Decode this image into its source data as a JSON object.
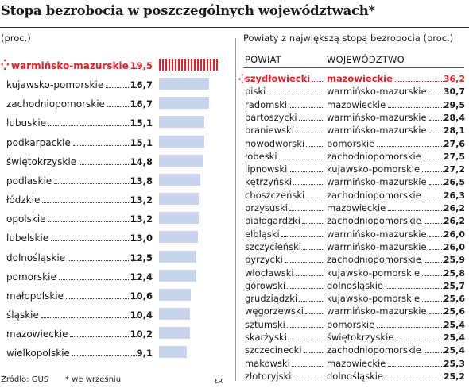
{
  "title": "Stopa bezrobocia w poszczególnych województwach*",
  "left_subtitle": "(proc.)",
  "right_subtitle": "Powiaty z największą stopą bezrobocia (proc.)",
  "right_columns": [
    "POWIAT",
    "WOJEWÓDZTWO"
  ],
  "colors": {
    "highlight": "#e8202a",
    "bar": "#c7d4ec"
  },
  "footer": {
    "source": "Źródło: GUS",
    "note": "* we wrześniu",
    "credit": "ŁR"
  },
  "chart_data": [
    {
      "type": "bar",
      "orientation": "horizontal",
      "categories": [
        "warmińsko-mazurskie",
        "kujawsko-pomorskie",
        "zachodniopomorskie",
        "lubuskie",
        "podkarpackie",
        "świętokrzyskie",
        "podlaskie",
        "łódzkie",
        "opolskie",
        "lubelskie",
        "dolnośląskie",
        "pomorskie",
        "małopolskie",
        "śląskie",
        "mazowieckie",
        "wielkopolskie"
      ],
      "values": [
        19.5,
        16.7,
        16.7,
        15.1,
        15.1,
        14.8,
        13.8,
        13.2,
        13.2,
        13.0,
        12.5,
        12.4,
        10.6,
        10.4,
        10.2,
        9.1
      ],
      "value_labels": [
        "19,5",
        "16,7",
        "16,7",
        "15,1",
        "15,1",
        "14,8",
        "13,8",
        "13,2",
        "13,2",
        "13,0",
        "12,5",
        "12,4",
        "10,6",
        "10,4",
        "10,2",
        "9,1"
      ],
      "highlight_index": 0
    },
    {
      "type": "table",
      "columns": [
        "POWIAT",
        "WOJEWÓDZTWO"
      ],
      "rows": [
        [
          "szydłowiecki",
          "mazowieckie",
          "36,2"
        ],
        [
          "piski",
          "warmińsko-mazurskie",
          "30,7"
        ],
        [
          "radomski",
          "mazowieckie",
          "29,5"
        ],
        [
          "bartoszycki",
          "warmińsko-mazurskie",
          "28,4"
        ],
        [
          "braniewski",
          "warmińsko-mazurskie",
          "28,1"
        ],
        [
          "nowodworski",
          "pomorskie",
          "27,6"
        ],
        [
          "łobeski",
          "zachodniopomorskie",
          "27,5"
        ],
        [
          "lipnowski",
          "kujawsko-pomorskie",
          "27,2"
        ],
        [
          "kętrzyński",
          "warmińsko-mazurskie",
          "26,5"
        ],
        [
          "choszczeński",
          "zachodniopomorskie",
          "26,3"
        ],
        [
          "przysuski",
          "mazowieckie",
          "26,2"
        ],
        [
          "białogardzki",
          "zachodniopomorskie",
          "26,2"
        ],
        [
          "elbląski",
          "warmińsko-mazurskie",
          "26,0"
        ],
        [
          "szczycieński",
          "warmińsko-mazurskie",
          "26,0"
        ],
        [
          "pyrzycki",
          "zachodniopomorskie",
          "25,9"
        ],
        [
          "włocławski",
          "kujawsko-pomorskie",
          "25,8"
        ],
        [
          "górowski",
          "dolnośląskie",
          "25,7"
        ],
        [
          "grudziądzki",
          "kujawsko-pomorskie",
          "25,6"
        ],
        [
          "węgorzewski",
          "warmińsko-mazurskie",
          "25,6"
        ],
        [
          "sztumski",
          "pomorskie",
          "25,4"
        ],
        [
          "skarżyski",
          "świętokrzyskie",
          "25,4"
        ],
        [
          "szczecinecki",
          "zachodniopomorskie",
          "25,4"
        ],
        [
          "makowski",
          "mazowieckie",
          "25,3"
        ],
        [
          "złotoryjski",
          "dolnośląskie",
          "25,2"
        ]
      ],
      "highlight_index": 0
    }
  ]
}
